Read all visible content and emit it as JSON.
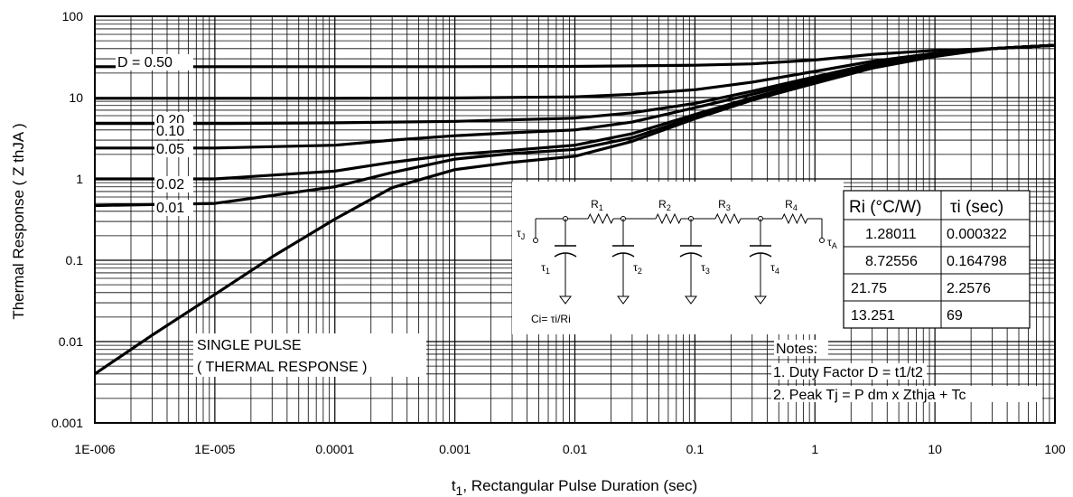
{
  "chart_data": {
    "type": "line",
    "title": "",
    "xlabel": "t",
    "xlabel_sub": "1",
    "xlabel_rest": ", Rectangular Pulse Duration (sec)",
    "ylabel": "Thermal Response ( Z thJA )",
    "x_scale": "log",
    "y_scale": "log",
    "xlim": [
      1e-06,
      100
    ],
    "ylim": [
      0.001,
      100
    ],
    "x_ticks": [
      "1E-006",
      "1E-005",
      "0.0001",
      "0.001",
      "0.01",
      "0.1",
      "1",
      "10",
      "100"
    ],
    "y_ticks": [
      "0.001",
      "0.01",
      "0.1",
      "1",
      "10",
      "100"
    ],
    "grid": true,
    "series": [
      {
        "name": "D = 0.50",
        "x": [
          1e-06,
          1e-05,
          0.0001,
          0.001,
          0.01,
          0.1,
          0.3,
          1,
          3,
          10,
          30,
          100
        ],
        "y": [
          24,
          24,
          24,
          24,
          24.2,
          25,
          26,
          29,
          34,
          38,
          40,
          44
        ]
      },
      {
        "name": "0.20",
        "x": [
          1e-06,
          1e-05,
          0.0001,
          0.001,
          0.01,
          0.03,
          0.1,
          0.3,
          1,
          3,
          10,
          30,
          100
        ],
        "y": [
          9.8,
          9.8,
          9.8,
          9.9,
          10.2,
          11,
          12.5,
          15.5,
          21,
          28,
          35,
          40,
          44
        ]
      },
      {
        "name": "0.10",
        "x": [
          1e-06,
          1e-05,
          0.0001,
          0.001,
          0.01,
          0.03,
          0.1,
          0.3,
          1,
          3,
          10,
          30,
          100
        ],
        "y": [
          4.8,
          4.8,
          4.9,
          5.1,
          5.6,
          6.5,
          8.5,
          12,
          18,
          26,
          34,
          40,
          44
        ]
      },
      {
        "name": "0.05",
        "x": [
          1e-06,
          1e-05,
          0.0001,
          0.0003,
          0.001,
          0.003,
          0.01,
          0.03,
          0.1,
          0.3,
          1,
          3,
          10,
          30,
          100
        ],
        "y": [
          2.4,
          2.4,
          2.6,
          3.0,
          3.4,
          3.7,
          4.0,
          5.0,
          7.5,
          11,
          17,
          25,
          33,
          40,
          44
        ]
      },
      {
        "name": "0.02",
        "x": [
          1e-06,
          1e-05,
          0.0001,
          0.0003,
          0.001,
          0.003,
          0.01,
          0.03,
          0.1,
          0.3,
          1,
          3,
          10,
          30,
          100
        ],
        "y": [
          1.0,
          1.0,
          1.25,
          1.6,
          2.0,
          2.25,
          2.6,
          3.6,
          6.2,
          10,
          16,
          24,
          33,
          40,
          44
        ]
      },
      {
        "name": "0.01",
        "x": [
          1e-06,
          1e-05,
          0.0001,
          0.0003,
          0.001,
          0.003,
          0.01,
          0.03,
          0.1,
          0.3,
          1,
          3,
          10,
          30,
          100
        ],
        "y": [
          0.47,
          0.5,
          0.8,
          1.2,
          1.75,
          2.05,
          2.3,
          3.2,
          5.8,
          9.5,
          15.5,
          24,
          33,
          40,
          44
        ]
      },
      {
        "name": "SINGLE PULSE",
        "x": [
          1e-06,
          3e-06,
          1e-05,
          3e-05,
          0.0001,
          0.0003,
          0.001,
          0.003,
          0.01,
          0.03,
          0.1,
          0.3,
          1,
          3,
          10,
          30,
          100
        ],
        "y": [
          0.004,
          0.012,
          0.038,
          0.11,
          0.32,
          0.78,
          1.3,
          1.6,
          1.9,
          2.9,
          5.5,
          9.3,
          15,
          23,
          32,
          40,
          44
        ]
      }
    ],
    "series_labels": [
      "D = 0.50",
      "0.20",
      "0.10",
      "0.05",
      "0.02",
      "0.01"
    ],
    "single_pulse_label": [
      "SINGLE PULSE",
      "( THERMAL RESPONSE )"
    ],
    "notes": {
      "heading": "Notes:",
      "items": [
        "1. Duty Factor D = t1/t2",
        "2. Peak Tj = P dm x Zthja + Tc"
      ]
    },
    "rc_table": {
      "headers": [
        "Ri (°C/W)",
        "τi (sec)"
      ],
      "rows": [
        [
          "1.28011",
          "0.000322"
        ],
        [
          "8.72556",
          "0.164798"
        ],
        [
          "21.75",
          "2.2576"
        ],
        [
          "13.251",
          "69"
        ]
      ]
    },
    "circuit": {
      "formula": "Ci= τi/Ri",
      "resistors": [
        "R",
        "R",
        "R",
        "R"
      ],
      "resistor_subs": [
        "1",
        "2",
        "3",
        "4"
      ],
      "caps": [
        "τ",
        "τ",
        "τ",
        "τ"
      ],
      "cap_subs": [
        "1",
        "2",
        "3",
        "4"
      ],
      "node_left": "τ",
      "node_left_sub": "J",
      "node_right": "τ",
      "node_right_sub": "A"
    }
  }
}
